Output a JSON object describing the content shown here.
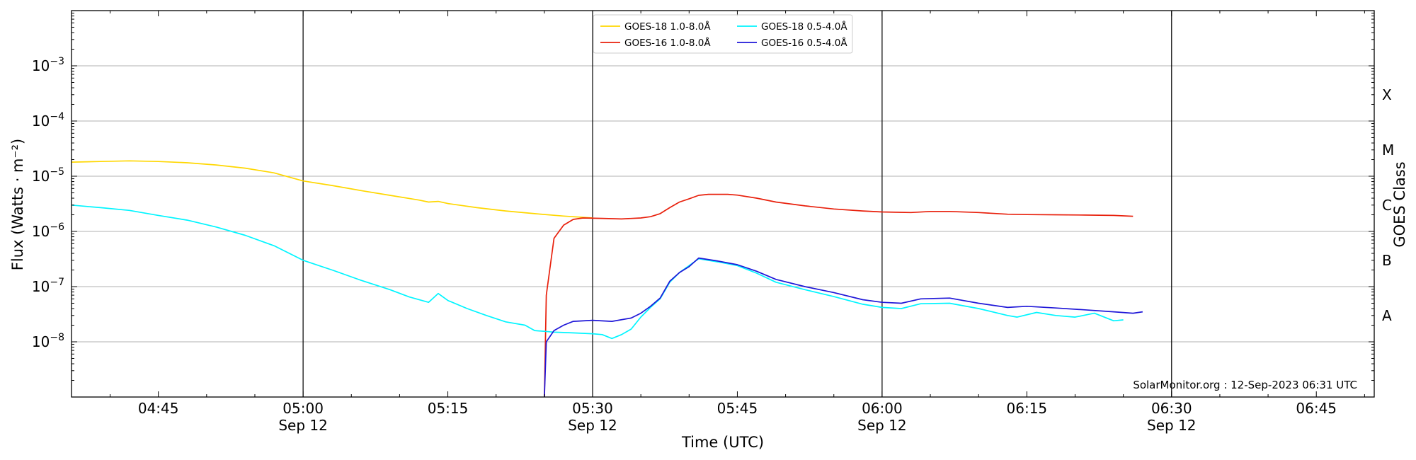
{
  "chart_data": {
    "type": "line",
    "xlabel": "Time (UTC)",
    "ylabel": "Flux (Watts · m⁻²)",
    "right_ylabel": "GOES Class",
    "y_scale": "log",
    "ylim": [
      1e-09,
      0.01
    ],
    "xlim": [
      "2023-09-12T04:36",
      "2023-09-12T06:51"
    ],
    "grid": "horizontal",
    "legend_position": "top-center",
    "credit": "SolarMonitor.org : 12-Sep-2023 06:31 UTC",
    "x_ticks": [
      {
        "time": "2023-09-12T04:45",
        "label": "04:45",
        "date": ""
      },
      {
        "time": "2023-09-12T05:00",
        "label": "05:00",
        "date": "Sep 12"
      },
      {
        "time": "2023-09-12T05:15",
        "label": "05:15",
        "date": ""
      },
      {
        "time": "2023-09-12T05:30",
        "label": "05:30",
        "date": "Sep 12"
      },
      {
        "time": "2023-09-12T05:45",
        "label": "05:45",
        "date": ""
      },
      {
        "time": "2023-09-12T06:00",
        "label": "06:00",
        "date": "Sep 12"
      },
      {
        "time": "2023-09-12T06:15",
        "label": "06:15",
        "date": ""
      },
      {
        "time": "2023-09-12T06:30",
        "label": "06:30",
        "date": "Sep 12"
      },
      {
        "time": "2023-09-12T06:45",
        "label": "06:45",
        "date": ""
      }
    ],
    "vertical_lines": [
      "2023-09-12T05:00",
      "2023-09-12T05:30",
      "2023-09-12T06:00",
      "2023-09-12T06:30"
    ],
    "y_ticks": [
      {
        "value": 1e-08,
        "base": "10",
        "exp": "−8"
      },
      {
        "value": 1e-07,
        "base": "10",
        "exp": "−7"
      },
      {
        "value": 1e-06,
        "base": "10",
        "exp": "−6"
      },
      {
        "value": 1e-05,
        "base": "10",
        "exp": "−5"
      },
      {
        "value": 0.0001,
        "base": "10",
        "exp": "−4"
      },
      {
        "value": 0.001,
        "base": "10",
        "exp": "−3"
      }
    ],
    "goes_classes": [
      {
        "label": "A",
        "value": 3e-08
      },
      {
        "label": "B",
        "value": 3e-07
      },
      {
        "label": "C",
        "value": 3e-06
      },
      {
        "label": "M",
        "value": 3e-05
      },
      {
        "label": "X",
        "value": 0.0003
      }
    ],
    "series": [
      {
        "name": "GOES-18 1.0-8.0Å",
        "color": "#ffd700",
        "points": [
          [
            "2023-09-12T04:36",
            1.8e-05
          ],
          [
            "2023-09-12T04:39",
            1.85e-05
          ],
          [
            "2023-09-12T04:42",
            1.9e-05
          ],
          [
            "2023-09-12T04:45",
            1.85e-05
          ],
          [
            "2023-09-12T04:48",
            1.75e-05
          ],
          [
            "2023-09-12T04:51",
            1.6e-05
          ],
          [
            "2023-09-12T04:54",
            1.4e-05
          ],
          [
            "2023-09-12T04:57",
            1.15e-05
          ],
          [
            "2023-09-12T05:00",
            8.2e-06
          ],
          [
            "2023-09-12T05:03",
            6.8e-06
          ],
          [
            "2023-09-12T05:06",
            5.5e-06
          ],
          [
            "2023-09-12T05:09",
            4.5e-06
          ],
          [
            "2023-09-12T05:12",
            3.7e-06
          ],
          [
            "2023-09-12T05:13",
            3.4e-06
          ],
          [
            "2023-09-12T05:14",
            3.5e-06
          ],
          [
            "2023-09-12T05:15",
            3.2e-06
          ],
          [
            "2023-09-12T05:18",
            2.7e-06
          ],
          [
            "2023-09-12T05:21",
            2.35e-06
          ],
          [
            "2023-09-12T05:24",
            2.1e-06
          ],
          [
            "2023-09-12T05:27",
            1.9e-06
          ],
          [
            "2023-09-12T05:30",
            1.75e-06
          ]
        ]
      },
      {
        "name": "GOES-16 1.0-8.0Å",
        "color": "#e8200c",
        "points": [
          [
            "2023-09-12T05:25",
            1e-09
          ],
          [
            "2023-09-12T05:25.2",
            7e-08
          ],
          [
            "2023-09-12T05:26",
            7.5e-07
          ],
          [
            "2023-09-12T05:27",
            1.3e-06
          ],
          [
            "2023-09-12T05:28",
            1.65e-06
          ],
          [
            "2023-09-12T05:29",
            1.75e-06
          ],
          [
            "2023-09-12T05:31",
            1.72e-06
          ],
          [
            "2023-09-12T05:33",
            1.68e-06
          ],
          [
            "2023-09-12T05:35",
            1.75e-06
          ],
          [
            "2023-09-12T05:36",
            1.85e-06
          ],
          [
            "2023-09-12T05:37",
            2.1e-06
          ],
          [
            "2023-09-12T05:38",
            2.7e-06
          ],
          [
            "2023-09-12T05:39",
            3.4e-06
          ],
          [
            "2023-09-12T05:40",
            3.9e-06
          ],
          [
            "2023-09-12T05:41",
            4.5e-06
          ],
          [
            "2023-09-12T05:42",
            4.7e-06
          ],
          [
            "2023-09-12T05:44",
            4.7e-06
          ],
          [
            "2023-09-12T05:45",
            4.55e-06
          ],
          [
            "2023-09-12T05:47",
            4e-06
          ],
          [
            "2023-09-12T05:49",
            3.4e-06
          ],
          [
            "2023-09-12T05:52",
            2.9e-06
          ],
          [
            "2023-09-12T05:55",
            2.55e-06
          ],
          [
            "2023-09-12T05:58",
            2.35e-06
          ],
          [
            "2023-09-12T06:00",
            2.25e-06
          ],
          [
            "2023-09-12T06:03",
            2.2e-06
          ],
          [
            "2023-09-12T06:05",
            2.3e-06
          ],
          [
            "2023-09-12T06:07",
            2.3e-06
          ],
          [
            "2023-09-12T06:10",
            2.2e-06
          ],
          [
            "2023-09-12T06:13",
            2.05e-06
          ],
          [
            "2023-09-12T06:15",
            2.02e-06
          ],
          [
            "2023-09-12T06:18",
            2e-06
          ],
          [
            "2023-09-12T06:21",
            1.98e-06
          ],
          [
            "2023-09-12T06:24",
            1.95e-06
          ],
          [
            "2023-09-12T06:26",
            1.88e-06
          ]
        ]
      },
      {
        "name": "GOES-18 0.5-4.0Å",
        "color": "#00f5ff",
        "points": [
          [
            "2023-09-12T04:36",
            3e-06
          ],
          [
            "2023-09-12T04:39",
            2.7e-06
          ],
          [
            "2023-09-12T04:42",
            2.4e-06
          ],
          [
            "2023-09-12T04:45",
            1.95e-06
          ],
          [
            "2023-09-12T04:48",
            1.6e-06
          ],
          [
            "2023-09-12T04:51",
            1.2e-06
          ],
          [
            "2023-09-12T04:54",
            8.5e-07
          ],
          [
            "2023-09-12T04:57",
            5.5e-07
          ],
          [
            "2023-09-12T05:00",
            3e-07
          ],
          [
            "2023-09-12T05:03",
            2e-07
          ],
          [
            "2023-09-12T05:06",
            1.3e-07
          ],
          [
            "2023-09-12T05:09",
            8.8e-08
          ],
          [
            "2023-09-12T05:11",
            6.5e-08
          ],
          [
            "2023-09-12T05:13",
            5.2e-08
          ],
          [
            "2023-09-12T05:14",
            7.5e-08
          ],
          [
            "2023-09-12T05:15",
            5.6e-08
          ],
          [
            "2023-09-12T05:17",
            4e-08
          ],
          [
            "2023-09-12T05:19",
            3e-08
          ],
          [
            "2023-09-12T05:21",
            2.3e-08
          ],
          [
            "2023-09-12T05:23",
            2e-08
          ],
          [
            "2023-09-12T05:24",
            1.6e-08
          ],
          [
            "2023-09-12T05:26",
            1.5e-08
          ],
          [
            "2023-09-12T05:28",
            1.45e-08
          ],
          [
            "2023-09-12T05:30",
            1.4e-08
          ],
          [
            "2023-09-12T05:31",
            1.35e-08
          ],
          [
            "2023-09-12T05:32",
            1.15e-08
          ],
          [
            "2023-09-12T05:33",
            1.35e-08
          ],
          [
            "2023-09-12T05:34",
            1.7e-08
          ],
          [
            "2023-09-12T05:35",
            2.8e-08
          ],
          [
            "2023-09-12T05:36",
            4.2e-08
          ],
          [
            "2023-09-12T05:37",
            6e-08
          ],
          [
            "2023-09-12T05:38",
            1.2e-07
          ],
          [
            "2023-09-12T05:39",
            1.8e-07
          ],
          [
            "2023-09-12T05:40",
            2.4e-07
          ],
          [
            "2023-09-12T05:41",
            3.2e-07
          ],
          [
            "2023-09-12T05:43",
            2.8e-07
          ],
          [
            "2023-09-12T05:45",
            2.4e-07
          ],
          [
            "2023-09-12T05:47",
            1.75e-07
          ],
          [
            "2023-09-12T05:49",
            1.2e-07
          ],
          [
            "2023-09-12T05:52",
            8.8e-08
          ],
          [
            "2023-09-12T05:55",
            6.6e-08
          ],
          [
            "2023-09-12T05:58",
            4.8e-08
          ],
          [
            "2023-09-12T06:00",
            4.2e-08
          ],
          [
            "2023-09-12T06:02",
            4e-08
          ],
          [
            "2023-09-12T06:04",
            4.9e-08
          ],
          [
            "2023-09-12T06:07",
            5e-08
          ],
          [
            "2023-09-12T06:10",
            4e-08
          ],
          [
            "2023-09-12T06:13",
            3e-08
          ],
          [
            "2023-09-12T06:14",
            2.8e-08
          ],
          [
            "2023-09-12T06:16",
            3.4e-08
          ],
          [
            "2023-09-12T06:18",
            3e-08
          ],
          [
            "2023-09-12T06:20",
            2.8e-08
          ],
          [
            "2023-09-12T06:22",
            3.3e-08
          ],
          [
            "2023-09-12T06:24",
            2.4e-08
          ],
          [
            "2023-09-12T06:25",
            2.5e-08
          ]
        ]
      },
      {
        "name": "GOES-16 0.5-4.0Å",
        "color": "#1f17d8",
        "points": [
          [
            "2023-09-12T05:25",
            1e-09
          ],
          [
            "2023-09-12T05:25.2",
            1e-08
          ],
          [
            "2023-09-12T05:26",
            1.6e-08
          ],
          [
            "2023-09-12T05:27",
            2e-08
          ],
          [
            "2023-09-12T05:28",
            2.35e-08
          ],
          [
            "2023-09-12T05:30",
            2.45e-08
          ],
          [
            "2023-09-12T05:32",
            2.35e-08
          ],
          [
            "2023-09-12T05:34",
            2.7e-08
          ],
          [
            "2023-09-12T05:35",
            3.3e-08
          ],
          [
            "2023-09-12T05:36",
            4.4e-08
          ],
          [
            "2023-09-12T05:37",
            6.2e-08
          ],
          [
            "2023-09-12T05:38",
            1.25e-07
          ],
          [
            "2023-09-12T05:39",
            1.8e-07
          ],
          [
            "2023-09-12T05:40",
            2.3e-07
          ],
          [
            "2023-09-12T05:41",
            3.3e-07
          ],
          [
            "2023-09-12T05:43",
            2.9e-07
          ],
          [
            "2023-09-12T05:45",
            2.5e-07
          ],
          [
            "2023-09-12T05:47",
            1.9e-07
          ],
          [
            "2023-09-12T05:49",
            1.35e-07
          ],
          [
            "2023-09-12T05:52",
            1e-07
          ],
          [
            "2023-09-12T05:55",
            7.8e-08
          ],
          [
            "2023-09-12T05:58",
            5.8e-08
          ],
          [
            "2023-09-12T06:00",
            5.2e-08
          ],
          [
            "2023-09-12T06:02",
            5e-08
          ],
          [
            "2023-09-12T06:04",
            6e-08
          ],
          [
            "2023-09-12T06:07",
            6.2e-08
          ],
          [
            "2023-09-12T06:10",
            5e-08
          ],
          [
            "2023-09-12T06:13",
            4.2e-08
          ],
          [
            "2023-09-12T06:15",
            4.4e-08
          ],
          [
            "2023-09-12T06:18",
            4.1e-08
          ],
          [
            "2023-09-12T06:21",
            3.8e-08
          ],
          [
            "2023-09-12T06:24",
            3.5e-08
          ],
          [
            "2023-09-12T06:26",
            3.3e-08
          ],
          [
            "2023-09-12T06:27",
            3.5e-08
          ]
        ]
      }
    ]
  }
}
